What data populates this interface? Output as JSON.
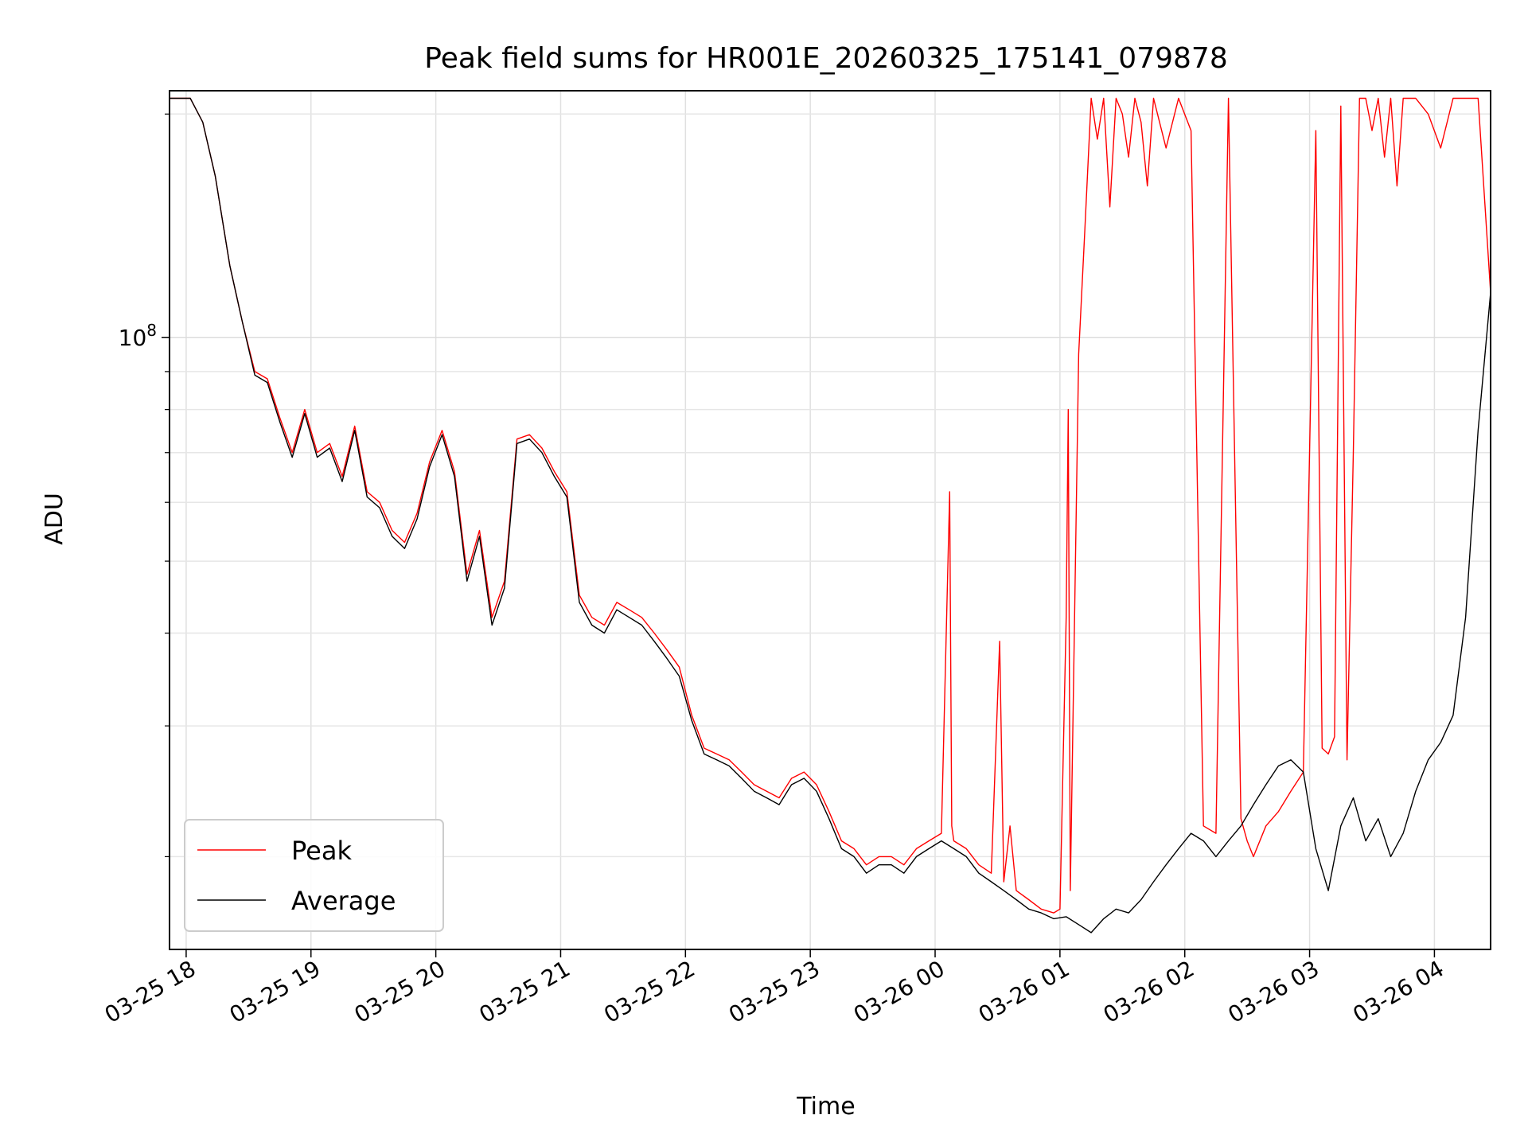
{
  "chart_data": {
    "type": "line",
    "title": "Peak field sums for HR001E_20260325_175141_079878",
    "xlabel": "Time",
    "ylabel": "ADU",
    "yscale": "log",
    "xlim": [
      "03-25 17:52",
      "03-26 04:27"
    ],
    "ylim": [
      15000000,
      215000000
    ],
    "y_tick_major": {
      "value": 100000000,
      "base": "10",
      "exponent": "8"
    },
    "y_tick_minor_values": [
      20000000,
      30000000,
      40000000,
      50000000,
      60000000,
      70000000,
      80000000,
      90000000,
      200000000
    ],
    "x_ticks": [
      {
        "value": "03-25 18:00",
        "label": "03-25 18"
      },
      {
        "value": "03-25 19:00",
        "label": "03-25 19"
      },
      {
        "value": "03-25 20:00",
        "label": "03-25 20"
      },
      {
        "value": "03-25 21:00",
        "label": "03-25 21"
      },
      {
        "value": "03-25 22:00",
        "label": "03-25 22"
      },
      {
        "value": "03-25 23:00",
        "label": "03-25 23"
      },
      {
        "value": "03-26 00:00",
        "label": "03-26 00"
      },
      {
        "value": "03-26 01:00",
        "label": "03-26 01"
      },
      {
        "value": "03-26 02:00",
        "label": "03-26 02"
      },
      {
        "value": "03-26 03:00",
        "label": "03-26 03"
      },
      {
        "value": "03-26 04:00",
        "label": "03-26 04"
      }
    ],
    "grid": true,
    "legend_position": "lower-left",
    "series": [
      {
        "name": "Peak",
        "color": "#ff0000",
        "x": [
          "03-25 17:52",
          "03-25 18:02",
          "03-25 18:08",
          "03-25 18:14",
          "03-25 18:21",
          "03-25 18:27",
          "03-25 18:33",
          "03-25 18:39",
          "03-25 18:45",
          "03-25 18:51",
          "03-25 18:57",
          "03-25 19:03",
          "03-25 19:09",
          "03-25 19:15",
          "03-25 19:21",
          "03-25 19:27",
          "03-25 19:33",
          "03-25 19:39",
          "03-25 19:45",
          "03-25 19:51",
          "03-25 19:57",
          "03-25 20:03",
          "03-25 20:09",
          "03-25 20:15",
          "03-25 20:21",
          "03-25 20:27",
          "03-25 20:33",
          "03-25 20:39",
          "03-25 20:45",
          "03-25 20:51",
          "03-25 20:57",
          "03-25 21:03",
          "03-25 21:09",
          "03-25 21:15",
          "03-25 21:21",
          "03-25 21:27",
          "03-25 21:33",
          "03-25 21:39",
          "03-25 21:45",
          "03-25 21:51",
          "03-25 21:57",
          "03-25 22:03",
          "03-25 22:09",
          "03-25 22:15",
          "03-25 22:21",
          "03-25 22:27",
          "03-25 22:33",
          "03-25 22:39",
          "03-25 22:45",
          "03-25 22:51",
          "03-25 22:57",
          "03-25 23:03",
          "03-25 23:09",
          "03-25 23:15",
          "03-25 23:21",
          "03-25 23:27",
          "03-25 23:33",
          "03-25 23:39",
          "03-25 23:45",
          "03-25 23:51",
          "03-25 23:57",
          "03-26 00:03",
          "03-26 00:07",
          "03-26 00:08",
          "03-26 00:09",
          "03-26 00:15",
          "03-26 00:21",
          "03-26 00:27",
          "03-26 00:31",
          "03-26 00:33",
          "03-26 00:36",
          "03-26 00:39",
          "03-26 00:45",
          "03-26 00:51",
          "03-26 00:57",
          "03-26 01:00",
          "03-26 01:03",
          "03-26 01:04",
          "03-26 01:05",
          "03-26 01:09",
          "03-26 01:12",
          "03-26 01:15",
          "03-26 01:18",
          "03-26 01:21",
          "03-26 01:24",
          "03-26 01:27",
          "03-26 01:30",
          "03-26 01:33",
          "03-26 01:36",
          "03-26 01:39",
          "03-26 01:42",
          "03-26 01:45",
          "03-26 01:51",
          "03-26 01:57",
          "03-26 02:03",
          "03-26 02:09",
          "03-26 02:15",
          "03-26 02:21",
          "03-26 02:27",
          "03-26 02:30",
          "03-26 02:33",
          "03-26 02:39",
          "03-26 02:45",
          "03-26 02:51",
          "03-26 02:57",
          "03-26 03:03",
          "03-26 03:06",
          "03-26 03:09",
          "03-26 03:12",
          "03-26 03:15",
          "03-26 03:18",
          "03-26 03:21",
          "03-26 03:24",
          "03-26 03:27",
          "03-26 03:30",
          "03-26 03:33",
          "03-26 03:36",
          "03-26 03:39",
          "03-26 03:42",
          "03-26 03:45",
          "03-26 03:51",
          "03-26 03:57",
          "03-26 04:03",
          "03-26 04:09",
          "03-26 04:15",
          "03-26 04:21",
          "03-26 04:27"
        ],
        "values": [
          210000000,
          210000000,
          195000000,
          165000000,
          125000000,
          105000000,
          90000000,
          88000000,
          78000000,
          70000000,
          80000000,
          70000000,
          72000000,
          65000000,
          76000000,
          62000000,
          60000000,
          55000000,
          53000000,
          58000000,
          68000000,
          75000000,
          66000000,
          48000000,
          55000000,
          42000000,
          47000000,
          73000000,
          74000000,
          71000000,
          66000000,
          62000000,
          45000000,
          42000000,
          41000000,
          44000000,
          43000000,
          42000000,
          40000000,
          38000000,
          36000000,
          31000000,
          28000000,
          27500000,
          27000000,
          26000000,
          25000000,
          24500000,
          24000000,
          25500000,
          26000000,
          25000000,
          23000000,
          21000000,
          20500000,
          19500000,
          20000000,
          20000000,
          19500000,
          20500000,
          21000000,
          21500000,
          62000000,
          22000000,
          21000000,
          20500000,
          19500000,
          19000000,
          39000000,
          18500000,
          22000000,
          18000000,
          17500000,
          17000000,
          16800000,
          17000000,
          42000000,
          80000000,
          18000000,
          95000000,
          140000000,
          210000000,
          185000000,
          210000000,
          150000000,
          210000000,
          200000000,
          175000000,
          210000000,
          195000000,
          160000000,
          210000000,
          180000000,
          210000000,
          190000000,
          22000000,
          21500000,
          210000000,
          22500000,
          21000000,
          20000000,
          22000000,
          23000000,
          24500000,
          26000000,
          190000000,
          28000000,
          27500000,
          29000000,
          205000000,
          27000000,
          70000000,
          210000000,
          210000000,
          190000000,
          210000000,
          175000000,
          210000000,
          160000000,
          210000000,
          210000000,
          200000000,
          180000000,
          210000000,
          210000000,
          210000000,
          115000000
        ]
      },
      {
        "name": "Average",
        "color": "#000000",
        "x": [
          "03-25 17:52",
          "03-25 18:02",
          "03-25 18:08",
          "03-25 18:14",
          "03-25 18:21",
          "03-25 18:27",
          "03-25 18:33",
          "03-25 18:39",
          "03-25 18:45",
          "03-25 18:51",
          "03-25 18:57",
          "03-25 19:03",
          "03-25 19:09",
          "03-25 19:15",
          "03-25 19:21",
          "03-25 19:27",
          "03-25 19:33",
          "03-25 19:39",
          "03-25 19:45",
          "03-25 19:51",
          "03-25 19:57",
          "03-25 20:03",
          "03-25 20:09",
          "03-25 20:15",
          "03-25 20:21",
          "03-25 20:27",
          "03-25 20:33",
          "03-25 20:39",
          "03-25 20:45",
          "03-25 20:51",
          "03-25 20:57",
          "03-25 21:03",
          "03-25 21:09",
          "03-25 21:15",
          "03-25 21:21",
          "03-25 21:27",
          "03-25 21:33",
          "03-25 21:39",
          "03-25 21:45",
          "03-25 21:51",
          "03-25 21:57",
          "03-25 22:03",
          "03-25 22:09",
          "03-25 22:15",
          "03-25 22:21",
          "03-25 22:27",
          "03-25 22:33",
          "03-25 22:39",
          "03-25 22:45",
          "03-25 22:51",
          "03-25 22:57",
          "03-25 23:03",
          "03-25 23:09",
          "03-25 23:15",
          "03-25 23:21",
          "03-25 23:27",
          "03-25 23:33",
          "03-25 23:39",
          "03-25 23:45",
          "03-25 23:51",
          "03-25 23:57",
          "03-26 00:03",
          "03-26 00:09",
          "03-26 00:15",
          "03-26 00:21",
          "03-26 00:27",
          "03-26 00:33",
          "03-26 00:39",
          "03-26 00:45",
          "03-26 00:51",
          "03-26 00:57",
          "03-26 01:03",
          "03-26 01:09",
          "03-26 01:15",
          "03-26 01:21",
          "03-26 01:27",
          "03-26 01:33",
          "03-26 01:39",
          "03-26 01:45",
          "03-26 01:51",
          "03-26 01:57",
          "03-26 02:03",
          "03-26 02:09",
          "03-26 02:15",
          "03-26 02:21",
          "03-26 02:27",
          "03-26 02:33",
          "03-26 02:39",
          "03-26 02:45",
          "03-26 02:51",
          "03-26 02:57",
          "03-26 03:03",
          "03-26 03:09",
          "03-26 03:15",
          "03-26 03:21",
          "03-26 03:27",
          "03-26 03:33",
          "03-26 03:39",
          "03-26 03:45",
          "03-26 03:51",
          "03-26 03:57",
          "03-26 04:03",
          "03-26 04:09",
          "03-26 04:15",
          "03-26 04:21",
          "03-26 04:27"
        ],
        "values": [
          210000000,
          210000000,
          195000000,
          165000000,
          125000000,
          105000000,
          89000000,
          87000000,
          77000000,
          69000000,
          79000000,
          69000000,
          71000000,
          64000000,
          75000000,
          61000000,
          59000000,
          54000000,
          52000000,
          57000000,
          67000000,
          74000000,
          65000000,
          47000000,
          54000000,
          41000000,
          46000000,
          72000000,
          73000000,
          70000000,
          65000000,
          61000000,
          44000000,
          41000000,
          40000000,
          43000000,
          42000000,
          41000000,
          39000000,
          37000000,
          35000000,
          30500000,
          27500000,
          27000000,
          26500000,
          25500000,
          24500000,
          24000000,
          23500000,
          25000000,
          25500000,
          24500000,
          22500000,
          20500000,
          20000000,
          19000000,
          19500000,
          19500000,
          19000000,
          20000000,
          20500000,
          21000000,
          20500000,
          20000000,
          19000000,
          18500000,
          18000000,
          17500000,
          17000000,
          16800000,
          16500000,
          16600000,
          16200000,
          15800000,
          16500000,
          17000000,
          16800000,
          17500000,
          18500000,
          19500000,
          20500000,
          21500000,
          21000000,
          20000000,
          21000000,
          22000000,
          23500000,
          25000000,
          26500000,
          27000000,
          26000000,
          20500000,
          18000000,
          22000000,
          24000000,
          21000000,
          22500000,
          20000000,
          21500000,
          24500000,
          27000000,
          28500000,
          31000000,
          42000000,
          75000000,
          115000000
        ]
      }
    ]
  }
}
